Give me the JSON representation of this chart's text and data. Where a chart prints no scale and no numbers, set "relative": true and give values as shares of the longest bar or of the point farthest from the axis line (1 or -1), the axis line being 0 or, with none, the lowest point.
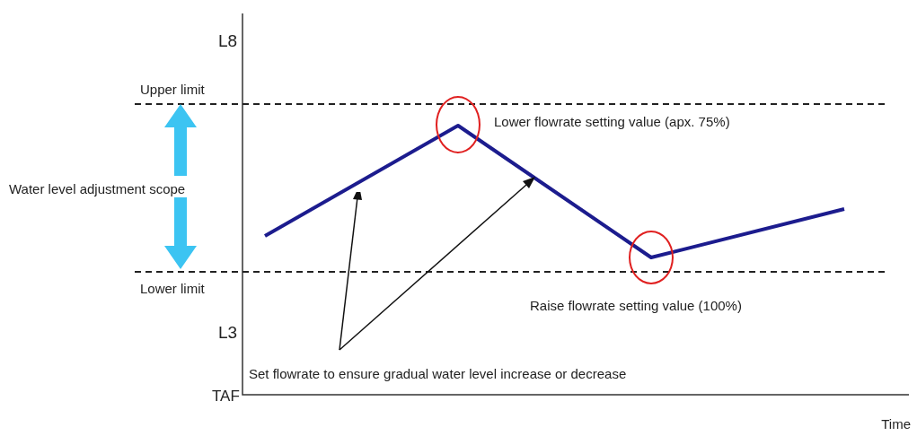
{
  "chart_data": {
    "type": "line",
    "xlabel": "Time",
    "relative": true,
    "categories": [
      null,
      null,
      null,
      null
    ],
    "series": [
      {
        "color": "#1c1c8e",
        "values": [
          0.59,
          1,
          0.51,
          0.69
        ]
      }
    ],
    "legend": false,
    "marker": "none",
    "line_style": "solid",
    "ref_lines": [
      {
        "axis": "y",
        "value": 1.08,
        "label": "Upper limit",
        "color": "#222222",
        "line_style": "dashed"
      },
      {
        "axis": "y",
        "value": 0.457,
        "label": "Lower limit",
        "color": "#222222",
        "line_style": "dashed"
      }
    ],
    "annotations": [
      "Lower flowrate setting value (apx. 75%)",
      "Raise flowrate setting value (100%)",
      "Water level adjustment scope",
      "Set flowrate to ensure gradual water level increase or decrease",
      "L8",
      "L3",
      "TAF"
    ]
  }
}
